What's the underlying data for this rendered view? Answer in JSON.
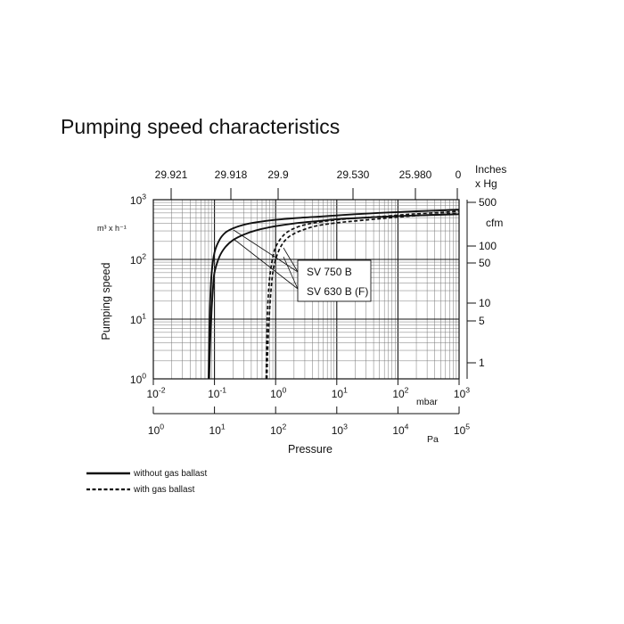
{
  "chart_data": {
    "type": "line",
    "title": "Pumping speed characteristics",
    "ylabel": "Pumping speed",
    "xlabel": "Pressure",
    "y_unit": "m³ x h⁻¹",
    "right_unit_top": "Inches",
    "right_unit_bottom": "x Hg",
    "right_axis_unit": "cfm",
    "x_unit_mbar": "mbar",
    "x_unit_pa": "Pa",
    "x_scale": "log",
    "y_scale": "log",
    "xlim": [
      0.01,
      1000
    ],
    "ylim": [
      1,
      1000
    ],
    "grid": true,
    "x_ticks_mbar": [
      "10-2",
      "10-1",
      "100",
      "101",
      "102",
      "103"
    ],
    "x_ticks_pa": [
      "100",
      "101",
      "102",
      "103",
      "104",
      "105"
    ],
    "y_ticks": [
      "100",
      "101",
      "102",
      "103"
    ],
    "top_ticks": [
      "29.921",
      "29.918",
      "29.9",
      "29.530",
      "25.980",
      "0"
    ],
    "right_ticks": [
      "500",
      "100",
      "50",
      "10",
      "5",
      "1"
    ],
    "annotations": [
      "SV 750 B",
      "SV 630 B (F)"
    ],
    "legend": [
      {
        "label": "without gas ballast",
        "style": "solid"
      },
      {
        "label": "with gas ballast",
        "style": "dashed"
      }
    ],
    "series": [
      {
        "style": "solid",
        "x": [
          0.08,
          0.082,
          0.085,
          0.09,
          0.1,
          0.12,
          0.15,
          0.2,
          0.3,
          0.5,
          1,
          2,
          5,
          10,
          20,
          50,
          100,
          200,
          500,
          1000
        ],
        "y": [
          1,
          5,
          20,
          60,
          130,
          210,
          280,
          330,
          380,
          420,
          460,
          490,
          520,
          545,
          570,
          600,
          620,
          640,
          660,
          680
        ]
      },
      {
        "style": "solid",
        "x": [
          0.082,
          0.085,
          0.09,
          0.095,
          0.1,
          0.12,
          0.15,
          0.2,
          0.3,
          0.5,
          1,
          2,
          5,
          10,
          20,
          50,
          100,
          200,
          500,
          1000
        ],
        "y": [
          1,
          4,
          15,
          35,
          60,
          110,
          160,
          210,
          260,
          310,
          360,
          400,
          440,
          470,
          490,
          515,
          530,
          545,
          560,
          570
        ]
      },
      {
        "style": "dashed",
        "x": [
          0.7,
          0.72,
          0.75,
          0.8,
          0.9,
          1,
          1.2,
          1.5,
          2,
          3,
          5,
          10,
          20,
          50,
          100,
          200,
          500,
          1000
        ],
        "y": [
          1,
          6,
          20,
          50,
          110,
          160,
          220,
          280,
          330,
          380,
          420,
          460,
          490,
          520,
          550,
          580,
          610,
          640
        ]
      },
      {
        "style": "dashed",
        "x": [
          0.72,
          0.75,
          0.8,
          0.85,
          0.9,
          1,
          1.2,
          1.5,
          2,
          3,
          5,
          10,
          20,
          50,
          100,
          200,
          500,
          1000
        ],
        "y": [
          1,
          4,
          15,
          35,
          60,
          100,
          160,
          220,
          270,
          320,
          370,
          410,
          440,
          480,
          510,
          540,
          570,
          590
        ]
      }
    ]
  }
}
